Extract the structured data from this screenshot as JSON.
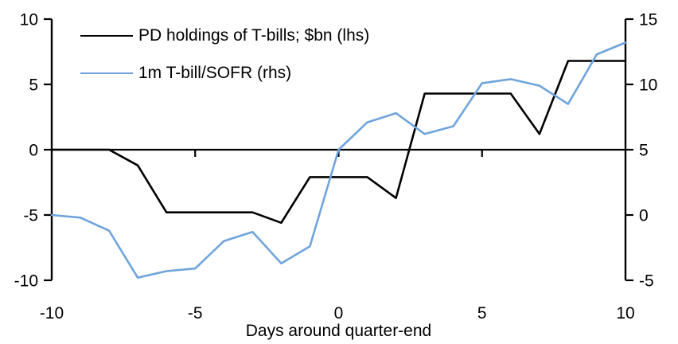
{
  "chart_data": {
    "type": "line",
    "title": "",
    "xlabel": "Days around quarter-end",
    "x": [
      -10,
      -9,
      -8,
      -7,
      -6,
      -5,
      -4,
      -3,
      -2,
      -1,
      0,
      1,
      2,
      3,
      4,
      5,
      6,
      7,
      8,
      9,
      10
    ],
    "series": [
      {
        "name": "PD holdings of T-bills; $bn (lhs)",
        "yaxis": "left",
        "color": "#000000",
        "values": [
          0,
          0,
          0,
          -1.2,
          -4.8,
          -4.8,
          -4.8,
          -4.8,
          -5.6,
          -2.1,
          -2.1,
          -2.1,
          -3.7,
          4.3,
          4.3,
          4.3,
          4.3,
          1.2,
          6.8,
          6.8,
          6.8
        ]
      },
      {
        "name": "1m T-bill/SOFR (rhs)",
        "yaxis": "right",
        "color": "#6FA4DC",
        "values": [
          0,
          -0.2,
          -1.2,
          -4.8,
          -4.3,
          -4.1,
          -2.0,
          -1.3,
          -3.7,
          -2.4,
          5.0,
          7.1,
          7.8,
          6.2,
          6.8,
          10.1,
          10.4,
          9.9,
          8.5,
          12.3,
          13.2
        ]
      }
    ],
    "left_axis": {
      "min": -10,
      "max": 10,
      "ticks": [
        10,
        5,
        0,
        -5,
        -10
      ]
    },
    "right_axis": {
      "min": -5,
      "max": 15,
      "ticks": [
        15,
        10,
        5,
        0,
        -5
      ]
    },
    "x_axis": {
      "min": -10,
      "max": 10,
      "ticks": [
        -10,
        -5,
        0,
        5,
        10
      ]
    },
    "grid": false,
    "legend_position": "top-left",
    "axis_color": "#000000"
  }
}
